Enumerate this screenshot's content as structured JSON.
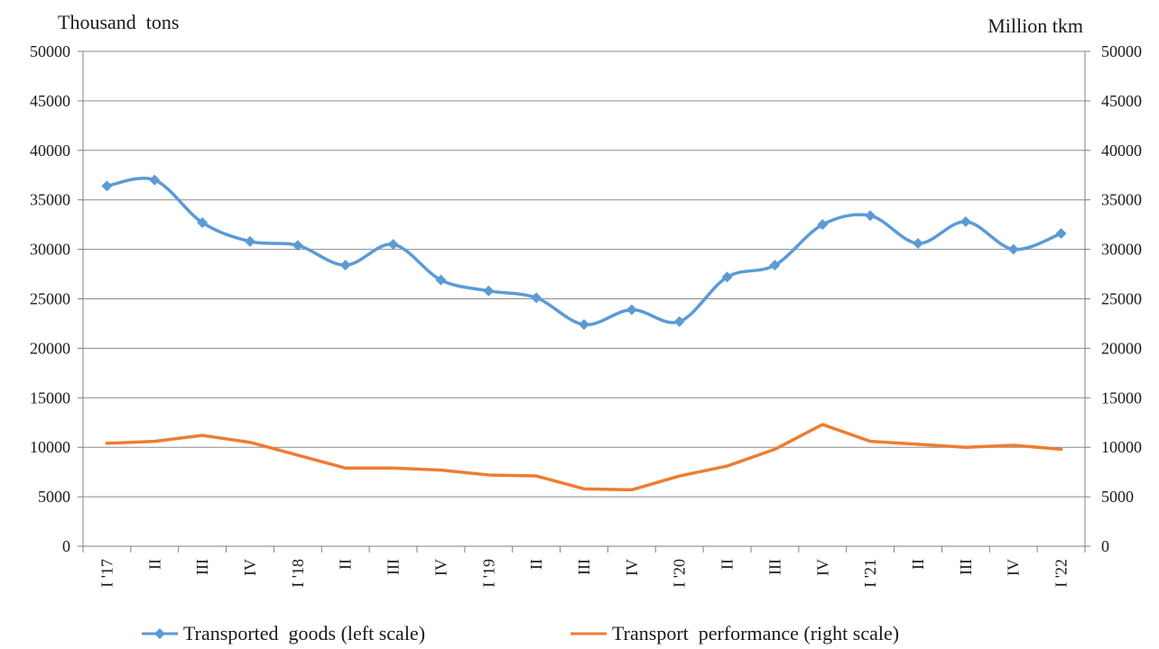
{
  "chart_data": {
    "type": "line",
    "left_axis_label": "Thousand  tons",
    "right_axis_label": "Million tkm",
    "categories": [
      "I '17",
      "II",
      "III",
      "IV",
      "I '18",
      "II",
      "III",
      "IV",
      "I '19",
      "II",
      "III",
      "IV",
      "I '20",
      "II",
      "III",
      "IV",
      "I '21",
      "II",
      "III",
      "IV",
      "I '22"
    ],
    "left_ylim": [
      0,
      50000
    ],
    "right_ylim": [
      0,
      50000
    ],
    "yticks": [
      0,
      5000,
      10000,
      15000,
      20000,
      25000,
      30000,
      35000,
      40000,
      45000,
      50000
    ],
    "grid": true,
    "legend_position": "bottom",
    "series": [
      {
        "name": "Transported  goods (left scale)",
        "axis": "left",
        "color": "#5b9bd5",
        "marker": "diamond",
        "smooth": true,
        "values": [
          36400,
          37000,
          32700,
          30800,
          30400,
          28400,
          30500,
          26900,
          25800,
          25100,
          22400,
          23900,
          22700,
          27200,
          28400,
          32500,
          33400,
          30600,
          32800,
          30000,
          31600
        ]
      },
      {
        "name": "Transport  performance (right scale)",
        "axis": "right",
        "color": "#ed7d31",
        "marker": "none",
        "smooth": false,
        "values": [
          10400,
          10600,
          11200,
          10500,
          9200,
          7900,
          7900,
          7700,
          7200,
          7100,
          5800,
          5700,
          7100,
          8100,
          9800,
          12300,
          10600,
          10300,
          10000,
          10200,
          9800
        ]
      }
    ]
  }
}
